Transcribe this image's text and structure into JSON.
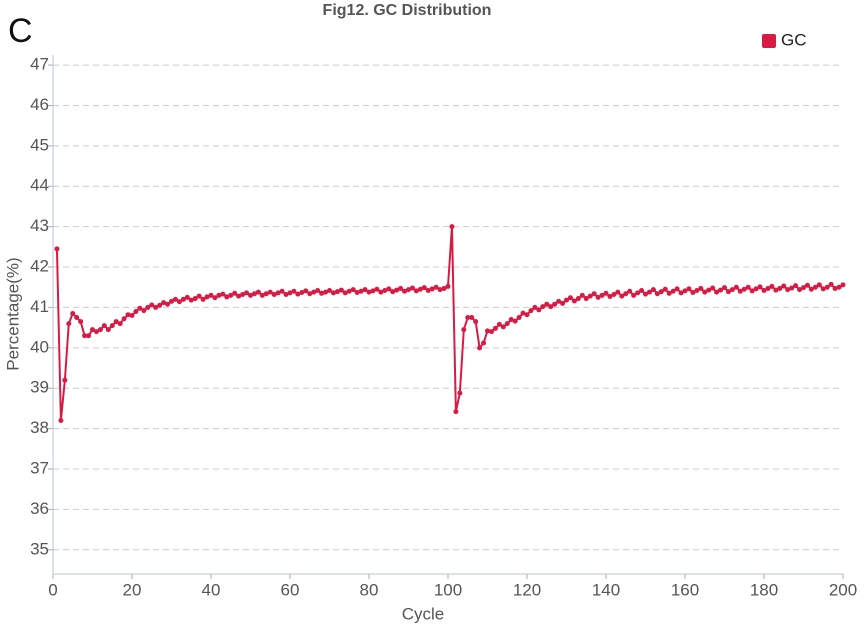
{
  "chart_data": {
    "type": "line",
    "title": "Fig12. GC Distribution",
    "panel_label": "C",
    "x_label": "Cycle",
    "y_label": "Percentage(%)",
    "legend": "top-right",
    "grid": true,
    "xlim": [
      0,
      200
    ],
    "xticks": [
      0,
      20,
      40,
      60,
      80,
      100,
      120,
      140,
      160,
      180,
      200
    ],
    "ylim": [
      34.4,
      47.25
    ],
    "yticks": [
      35,
      36,
      37,
      38,
      39,
      40,
      41,
      42,
      43,
      44,
      45,
      46,
      47
    ],
    "x": [
      1,
      2,
      3,
      4,
      5,
      6,
      7,
      8,
      9,
      10,
      11,
      12,
      13,
      14,
      15,
      16,
      17,
      18,
      19,
      20,
      21,
      22,
      23,
      24,
      25,
      26,
      27,
      28,
      29,
      30,
      31,
      32,
      33,
      34,
      35,
      36,
      37,
      38,
      39,
      40,
      41,
      42,
      43,
      44,
      45,
      46,
      47,
      48,
      49,
      50,
      51,
      52,
      53,
      54,
      55,
      56,
      57,
      58,
      59,
      60,
      61,
      62,
      63,
      64,
      65,
      66,
      67,
      68,
      69,
      70,
      71,
      72,
      73,
      74,
      75,
      76,
      77,
      78,
      79,
      80,
      81,
      82,
      83,
      84,
      85,
      86,
      87,
      88,
      89,
      90,
      91,
      92,
      93,
      94,
      95,
      96,
      97,
      98,
      99,
      100,
      101,
      102,
      103,
      104,
      105,
      106,
      107,
      108,
      109,
      110,
      111,
      112,
      113,
      114,
      115,
      116,
      117,
      118,
      119,
      120,
      121,
      122,
      123,
      124,
      125,
      126,
      127,
      128,
      129,
      130,
      131,
      132,
      133,
      134,
      135,
      136,
      137,
      138,
      139,
      140,
      141,
      142,
      143,
      144,
      145,
      146,
      147,
      148,
      149,
      150,
      151,
      152,
      153,
      154,
      155,
      156,
      157,
      158,
      159,
      160,
      161,
      162,
      163,
      164,
      165,
      166,
      167,
      168,
      169,
      170,
      171,
      172,
      173,
      174,
      175,
      176,
      177,
      178,
      179,
      180,
      181,
      182,
      183,
      184,
      185,
      186,
      187,
      188,
      189,
      190,
      191,
      192,
      193,
      194,
      195,
      196,
      197,
      198,
      199,
      200
    ],
    "series": [
      {
        "name": "GC",
        "color": "#d81b45",
        "values": [
          42.45,
          38.2,
          39.2,
          40.6,
          40.85,
          40.75,
          40.65,
          40.3,
          40.3,
          40.45,
          40.4,
          40.45,
          40.55,
          40.45,
          40.55,
          40.65,
          40.6,
          40.72,
          40.82,
          40.8,
          40.9,
          40.98,
          40.92,
          41.0,
          41.06,
          41.0,
          41.05,
          41.12,
          41.08,
          41.15,
          41.2,
          41.14,
          41.2,
          41.25,
          41.18,
          41.22,
          41.28,
          41.2,
          41.26,
          41.3,
          41.24,
          41.3,
          41.33,
          41.26,
          41.3,
          41.35,
          41.28,
          41.32,
          41.36,
          41.3,
          41.34,
          41.38,
          41.3,
          41.34,
          41.38,
          41.32,
          41.36,
          41.4,
          41.32,
          41.36,
          41.4,
          41.33,
          41.37,
          41.41,
          41.34,
          41.38,
          41.42,
          41.35,
          41.38,
          41.42,
          41.36,
          41.39,
          41.43,
          41.36,
          41.4,
          41.44,
          41.37,
          41.4,
          41.44,
          41.38,
          41.41,
          41.45,
          41.38,
          41.42,
          41.46,
          41.39,
          41.43,
          41.47,
          41.4,
          41.44,
          41.48,
          41.41,
          41.45,
          41.49,
          41.42,
          41.46,
          41.5,
          41.44,
          41.47,
          41.52,
          43.0,
          38.42,
          38.88,
          40.45,
          40.75,
          40.75,
          40.65,
          40.0,
          40.12,
          40.42,
          40.4,
          40.48,
          40.58,
          40.52,
          40.6,
          40.7,
          40.66,
          40.75,
          40.86,
          40.82,
          40.92,
          41.0,
          40.94,
          41.02,
          41.08,
          41.02,
          41.08,
          41.15,
          41.1,
          41.18,
          41.24,
          41.16,
          41.22,
          41.3,
          41.22,
          41.28,
          41.34,
          41.25,
          41.3,
          41.35,
          41.27,
          41.32,
          41.38,
          41.28,
          41.34,
          41.4,
          41.3,
          41.36,
          41.42,
          41.33,
          41.38,
          41.44,
          41.34,
          41.39,
          41.45,
          41.35,
          41.4,
          41.46,
          41.36,
          41.41,
          41.46,
          41.37,
          41.42,
          41.47,
          41.38,
          41.43,
          41.48,
          41.38,
          41.43,
          41.49,
          41.39,
          41.44,
          41.5,
          41.4,
          41.45,
          41.5,
          41.41,
          41.46,
          41.51,
          41.42,
          41.47,
          41.52,
          41.43,
          41.47,
          41.53,
          41.44,
          41.48,
          41.54,
          41.44,
          41.49,
          41.55,
          41.45,
          41.5,
          41.56,
          41.46,
          41.5,
          41.57,
          41.47,
          41.5,
          41.56
        ]
      }
    ]
  }
}
